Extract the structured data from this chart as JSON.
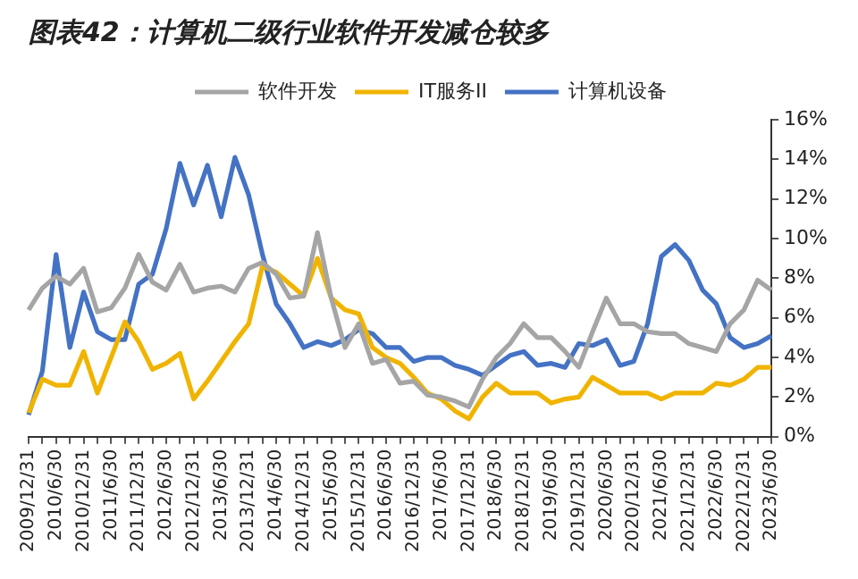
{
  "chart_data": {
    "type": "line",
    "title": "图表42：计算机二级行业软件开发减仓较多",
    "categories": [
      "2009/12/31",
      null,
      "2010/6/30",
      null,
      "2010/12/31",
      null,
      "2011/6/30",
      null,
      "2011/12/31",
      null,
      "2012/6/30",
      null,
      "2012/12/31",
      null,
      "2013/6/30",
      null,
      "2013/12/31",
      null,
      "2014/6/30",
      null,
      "2014/12/31",
      null,
      "2015/6/30",
      null,
      "2015/12/31",
      null,
      "2016/6/30",
      null,
      "2016/12/31",
      null,
      "2017/6/30",
      null,
      "2017/12/31",
      null,
      "2018/6/30",
      null,
      "2018/12/31",
      null,
      "2019/6/30",
      null,
      "2019/12/31",
      null,
      "2020/6/30",
      null,
      "2020/12/31",
      null,
      "2021/6/30",
      null,
      "2021/12/31",
      null,
      "2022/6/30",
      null,
      "2022/12/31",
      null,
      "2023/6/30"
    ],
    "series": [
      {
        "name": "软件开发",
        "color": "#a5a5a5",
        "values": [
          6.4,
          7.5,
          8.1,
          7.7,
          8.5,
          6.3,
          6.5,
          7.5,
          9.2,
          7.8,
          7.4,
          8.7,
          7.3,
          7.5,
          7.6,
          7.3,
          8.5,
          8.8,
          8.2,
          7.0,
          7.1,
          10.3,
          7.0,
          4.5,
          5.7,
          3.7,
          3.9,
          2.7,
          2.8,
          2.1,
          2.0,
          1.8,
          1.5,
          2.9,
          4.0,
          4.7,
          5.7,
          5.0,
          5.0,
          4.3,
          3.5,
          5.3,
          7.0,
          5.7,
          5.7,
          5.3,
          5.2,
          5.2,
          4.7,
          4.5,
          4.3,
          5.7,
          6.4,
          7.9,
          7.4
        ]
      },
      {
        "name": "IT服务II",
        "color": "#f0b400",
        "values": [
          1.2,
          2.9,
          2.6,
          2.6,
          4.3,
          2.2,
          4.0,
          5.8,
          4.8,
          3.4,
          3.7,
          4.2,
          1.9,
          2.8,
          3.8,
          4.8,
          5.7,
          8.6,
          8.3,
          7.7,
          7.1,
          9.0,
          7.0,
          6.4,
          6.2,
          4.5,
          4.0,
          3.7,
          3.0,
          2.2,
          1.9,
          1.3,
          0.9,
          2.0,
          2.7,
          2.2,
          2.2,
          2.2,
          1.7,
          1.9,
          2.0,
          3.0,
          2.6,
          2.2,
          2.2,
          2.2,
          1.9,
          2.2,
          2.2,
          2.2,
          2.7,
          2.6,
          2.9,
          3.5,
          3.5
        ]
      },
      {
        "name": "计算机设备",
        "color": "#4472c4",
        "values": [
          1.1,
          3.3,
          9.2,
          4.5,
          7.3,
          5.3,
          4.9,
          4.9,
          7.7,
          8.2,
          10.5,
          13.8,
          11.7,
          13.7,
          11.1,
          14.1,
          12.2,
          9.2,
          6.7,
          5.7,
          4.5,
          4.8,
          4.6,
          4.9,
          5.4,
          5.2,
          4.5,
          4.5,
          3.8,
          4.0,
          4.0,
          3.6,
          3.4,
          3.1,
          3.6,
          4.1,
          4.3,
          3.6,
          3.7,
          3.5,
          4.7,
          4.6,
          4.9,
          3.6,
          3.8,
          5.7,
          9.1,
          9.7,
          8.9,
          7.4,
          6.7,
          5.0,
          4.5,
          4.7,
          5.1
        ]
      }
    ],
    "ylim": [
      0,
      16
    ],
    "yticks": [
      {
        "value": 0,
        "label": "0%"
      },
      {
        "value": 2,
        "label": "2%"
      },
      {
        "value": 4,
        "label": "4%"
      },
      {
        "value": 6,
        "label": "6%"
      },
      {
        "value": 8,
        "label": "8%"
      },
      {
        "value": 10,
        "label": "10%"
      },
      {
        "value": 12,
        "label": "12%"
      },
      {
        "value": 14,
        "label": "14%"
      },
      {
        "value": 16,
        "label": "16%"
      }
    ],
    "grid": false,
    "legend": "top",
    "marker": "none",
    "line_style": "solid"
  }
}
